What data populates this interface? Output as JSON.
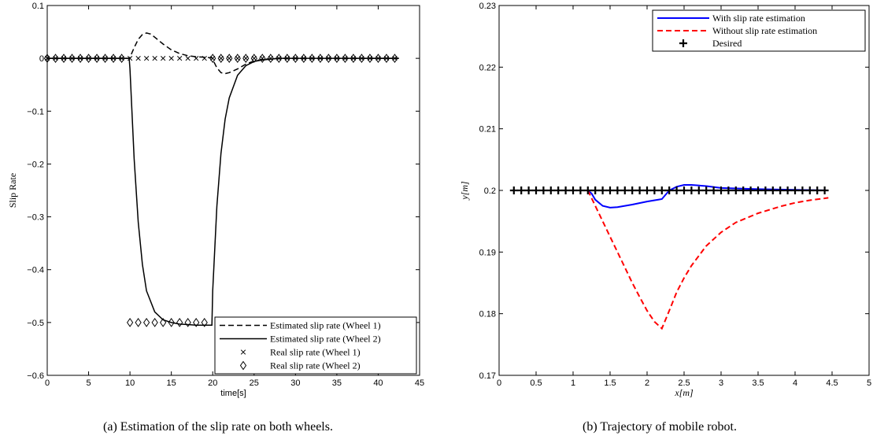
{
  "captions": {
    "a": "(a) Estimation of the slip rate on both wheels.",
    "b": "(b) Trajectory of mobile robot."
  },
  "chart_data": [
    {
      "type": "line",
      "xlabel": "time[s]",
      "ylabel": "Slip Rate",
      "xlim": [
        0,
        45
      ],
      "ylim": [
        -0.6,
        0.1
      ],
      "xticks": [
        "0",
        "5",
        "10",
        "15",
        "20",
        "25",
        "30",
        "35",
        "40",
        "45"
      ],
      "yticks": [
        "0.1",
        "0",
        "−0.1",
        "−0.2",
        "−0.3",
        "−0.4",
        "−0.5",
        "−0.6"
      ],
      "legend_position": "bottom-right",
      "series": [
        {
          "name": "Estimated slip rate (Wheel 1)",
          "style": "dashed",
          "color": "#000000",
          "x": [
            0,
            9.9,
            10,
            10.5,
            11,
            11.5,
            12,
            12.5,
            13,
            14,
            15,
            16,
            17,
            18,
            19,
            19.9,
            20,
            20.5,
            21,
            21.5,
            22,
            23,
            24,
            25,
            26,
            28,
            30,
            35,
            40,
            42.5
          ],
          "y": [
            0,
            0,
            0.002,
            0.02,
            0.036,
            0.045,
            0.048,
            0.046,
            0.04,
            0.027,
            0.016,
            0.009,
            0.005,
            0.003,
            0.002,
            0.001,
            -0.002,
            -0.018,
            -0.027,
            -0.029,
            -0.027,
            -0.02,
            -0.011,
            -0.005,
            -0.002,
            0,
            0,
            0,
            0,
            0
          ]
        },
        {
          "name": "Estimated slip rate (Wheel 2)",
          "style": "solid",
          "color": "#000000",
          "x": [
            0,
            9.9,
            10,
            10.5,
            11,
            11.5,
            12,
            13,
            14,
            15,
            16,
            17,
            18,
            19,
            19.9,
            20,
            20.5,
            21,
            21.5,
            22,
            23,
            24,
            25,
            26,
            28,
            30,
            35,
            40,
            42.5
          ],
          "y": [
            0,
            0,
            -0.02,
            -0.19,
            -0.31,
            -0.39,
            -0.44,
            -0.48,
            -0.495,
            -0.5,
            -0.503,
            -0.504,
            -0.505,
            -0.505,
            -0.505,
            -0.44,
            -0.28,
            -0.18,
            -0.115,
            -0.075,
            -0.032,
            -0.014,
            -0.006,
            -0.003,
            0,
            0,
            0,
            0,
            0
          ]
        },
        {
          "name": "Real slip rate (Wheel 1)",
          "style": "markers-x",
          "color": "#000000",
          "x": [
            0,
            1,
            2,
            3,
            4,
            5,
            6,
            7,
            8,
            9,
            10,
            11,
            12,
            13,
            14,
            15,
            16,
            17,
            18,
            19,
            20,
            21,
            22,
            23,
            24,
            25,
            26,
            27,
            28,
            29,
            30,
            31,
            32,
            33,
            34,
            35,
            36,
            37,
            38,
            39,
            40,
            41,
            42
          ],
          "y": [
            0,
            0,
            0,
            0,
            0,
            0,
            0,
            0,
            0,
            0,
            0,
            0,
            0,
            0,
            0,
            0,
            0,
            0,
            0,
            0,
            0,
            0,
            0,
            0,
            0,
            0,
            0,
            0,
            0,
            0,
            0,
            0,
            0,
            0,
            0,
            0,
            0,
            0,
            0,
            0,
            0,
            0,
            0
          ]
        },
        {
          "name": "Real slip rate (Wheel 2)",
          "style": "markers-diamond",
          "color": "#000000",
          "x": [
            0,
            1,
            2,
            3,
            4,
            5,
            6,
            7,
            8,
            9,
            10,
            11,
            12,
            13,
            14,
            15,
            16,
            17,
            18,
            19,
            20,
            21,
            22,
            23,
            24,
            25,
            26,
            27,
            28,
            29,
            30,
            31,
            32,
            33,
            34,
            35,
            36,
            37,
            38,
            39,
            40,
            41,
            42
          ],
          "y": [
            0,
            0,
            0,
            0,
            0,
            0,
            0,
            0,
            0,
            0,
            -0.5,
            -0.5,
            -0.5,
            -0.5,
            -0.5,
            -0.5,
            -0.5,
            -0.5,
            -0.5,
            -0.5,
            0,
            0,
            0,
            0,
            0,
            0,
            0,
            0,
            0,
            0,
            0,
            0,
            0,
            0,
            0,
            0,
            0,
            0,
            0,
            0,
            0,
            0,
            0
          ]
        }
      ]
    },
    {
      "type": "line",
      "xlabel": "x[m]",
      "ylabel": "y[m]",
      "xlim": [
        0,
        5
      ],
      "ylim": [
        0.17,
        0.23
      ],
      "xticks": [
        "0",
        "0.5",
        "1",
        "1.5",
        "2",
        "2.5",
        "3",
        "3.5",
        "4",
        "4.5",
        "5"
      ],
      "yticks": [
        "0.23",
        "0.22",
        "0.21",
        "0.2",
        "0.19",
        "0.18",
        "0.17"
      ],
      "legend_position": "top-right",
      "series": [
        {
          "name": "With slip rate estimation",
          "style": "solid",
          "color": "#0000ff",
          "x": [
            0.2,
            1.2,
            1.25,
            1.3,
            1.4,
            1.5,
            1.6,
            1.8,
            2.0,
            2.2,
            2.3,
            2.4,
            2.5,
            2.6,
            2.8,
            3.0,
            3.5,
            4.0,
            4.45
          ],
          "y": [
            0.2,
            0.2,
            0.1995,
            0.1985,
            0.1975,
            0.1972,
            0.1973,
            0.1977,
            0.1982,
            0.1986,
            0.2,
            0.2006,
            0.2009,
            0.2009,
            0.2007,
            0.2004,
            0.2002,
            0.2001,
            0.2
          ]
        },
        {
          "name": "Without slip rate estimation",
          "style": "dashed",
          "color": "#ff0000",
          "x": [
            1.2,
            1.3,
            1.4,
            1.5,
            1.6,
            1.7,
            1.8,
            1.9,
            2.0,
            2.1,
            2.2,
            2.3,
            2.4,
            2.5,
            2.6,
            2.8,
            3.0,
            3.2,
            3.5,
            3.8,
            4.0,
            4.2,
            4.45
          ],
          "y": [
            0.2,
            0.1975,
            0.195,
            0.1925,
            0.19,
            0.1875,
            0.185,
            0.1827,
            0.1805,
            0.1787,
            0.1776,
            0.1805,
            0.1835,
            0.1858,
            0.1878,
            0.191,
            0.1932,
            0.1948,
            0.1963,
            0.1974,
            0.198,
            0.1984,
            0.1988
          ]
        },
        {
          "name": "Desired",
          "style": "markers-plus",
          "color": "#000000",
          "x": [
            0.2,
            0.3,
            0.4,
            0.5,
            0.6,
            0.7,
            0.8,
            0.9,
            1.0,
            1.1,
            1.2,
            1.3,
            1.4,
            1.5,
            1.6,
            1.7,
            1.8,
            1.9,
            2.0,
            2.1,
            2.2,
            2.3,
            2.4,
            2.5,
            2.6,
            2.7,
            2.8,
            2.9,
            3.0,
            3.1,
            3.2,
            3.3,
            3.4,
            3.5,
            3.6,
            3.7,
            3.8,
            3.9,
            4.0,
            4.1,
            4.2,
            4.3,
            4.4
          ],
          "y": [
            0.2,
            0.2,
            0.2,
            0.2,
            0.2,
            0.2,
            0.2,
            0.2,
            0.2,
            0.2,
            0.2,
            0.2,
            0.2,
            0.2,
            0.2,
            0.2,
            0.2,
            0.2,
            0.2,
            0.2,
            0.2,
            0.2,
            0.2,
            0.2,
            0.2,
            0.2,
            0.2,
            0.2,
            0.2,
            0.2,
            0.2,
            0.2,
            0.2,
            0.2,
            0.2,
            0.2,
            0.2,
            0.2,
            0.2,
            0.2,
            0.2,
            0.2,
            0.2
          ]
        }
      ]
    }
  ]
}
